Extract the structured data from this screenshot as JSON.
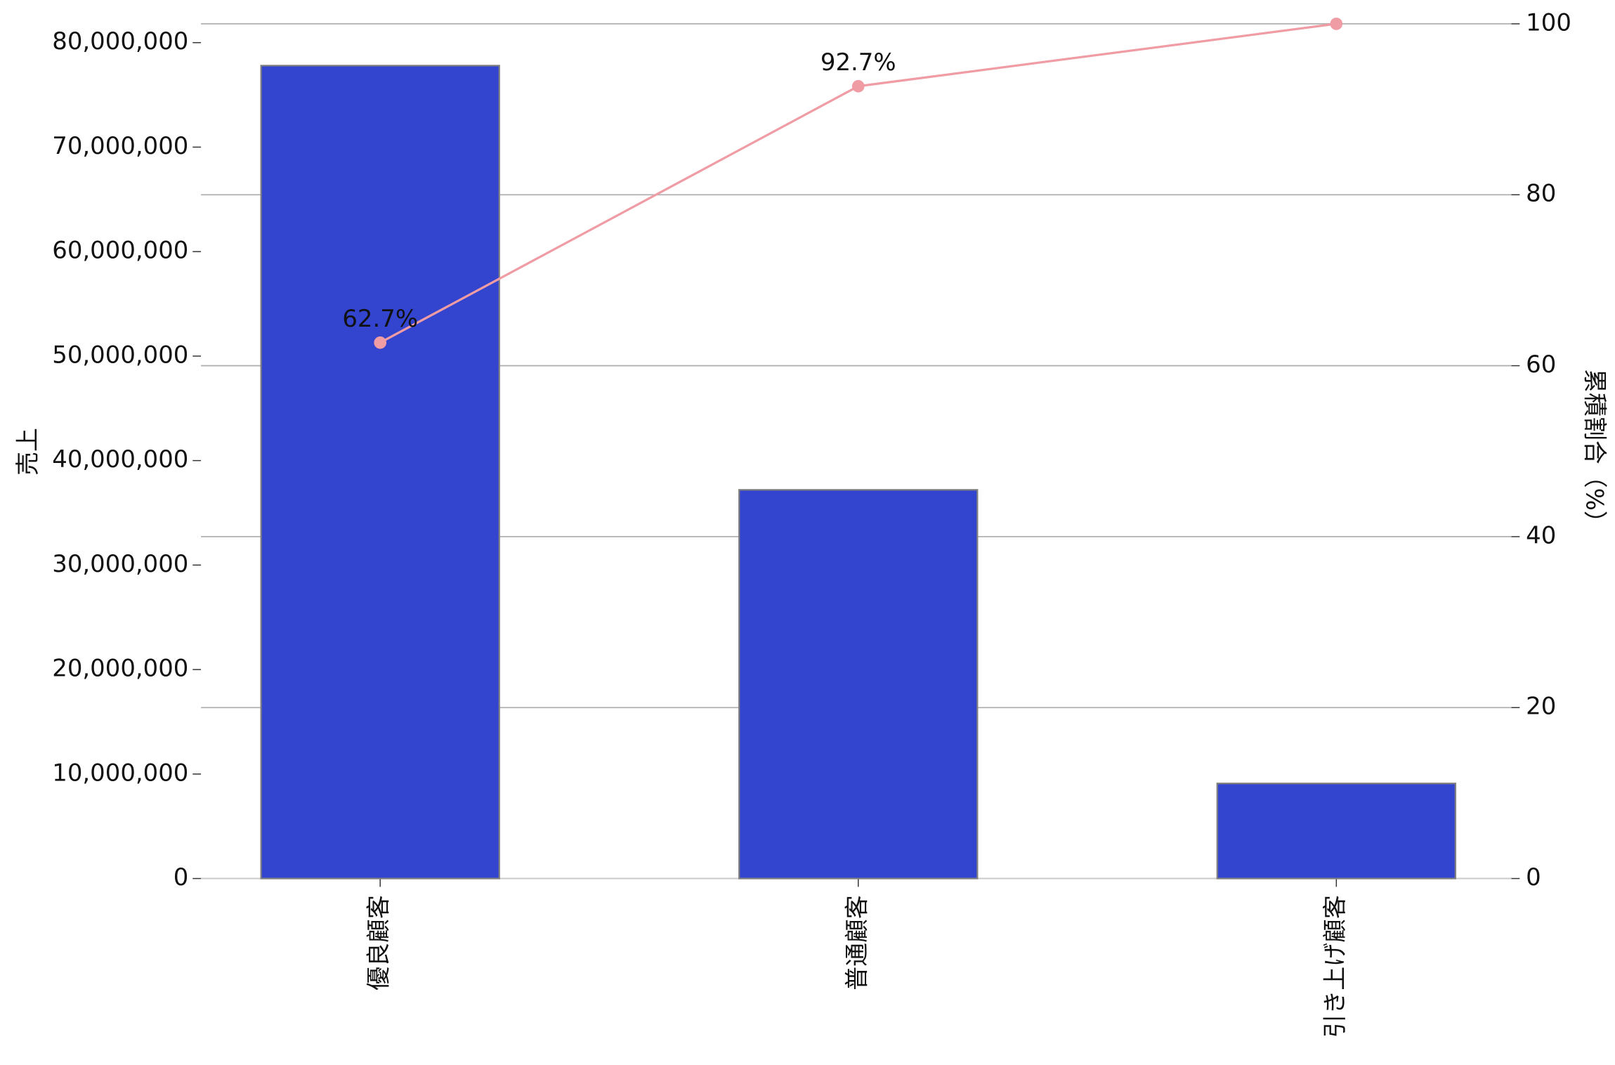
{
  "chart_data": {
    "type": "bar",
    "categories": [
      "優良顧客",
      "普通顧客",
      "引き上げ顧客"
    ],
    "series": [
      {
        "name": "売上",
        "type": "bar",
        "color": "#3344cf",
        "edgecolor": "#808080",
        "values": [
          77800000,
          37200000,
          9100000
        ]
      },
      {
        "name": "累積割合",
        "type": "line",
        "axis": "y2",
        "color": "#f09ca4",
        "values": [
          62.7,
          92.7,
          100.0
        ],
        "value_labels": [
          "62.7%",
          "92.7%",
          null
        ]
      }
    ],
    "ylabel": "売上",
    "y2label": "累積割合（%）",
    "ylim": [
      0,
      81800000
    ],
    "yticks": [
      0,
      {
        "value": 10000000,
        "label": "10,000,000"
      },
      {
        "value": 20000000,
        "label": "20,000,000"
      },
      {
        "value": 30000000,
        "label": "30,000,000"
      },
      {
        "value": 40000000,
        "label": "40,000,000"
      },
      {
        "value": 50000000,
        "label": "50,000,000"
      },
      {
        "value": 60000000,
        "label": "60,000,000"
      },
      {
        "value": 70000000,
        "label": "70,000,000"
      },
      {
        "value": 80000000,
        "label": "80,000,000"
      }
    ],
    "y2lim": [
      0,
      100
    ],
    "y2ticks": [
      0,
      20,
      40,
      60,
      80,
      100
    ],
    "grid": "y2"
  }
}
